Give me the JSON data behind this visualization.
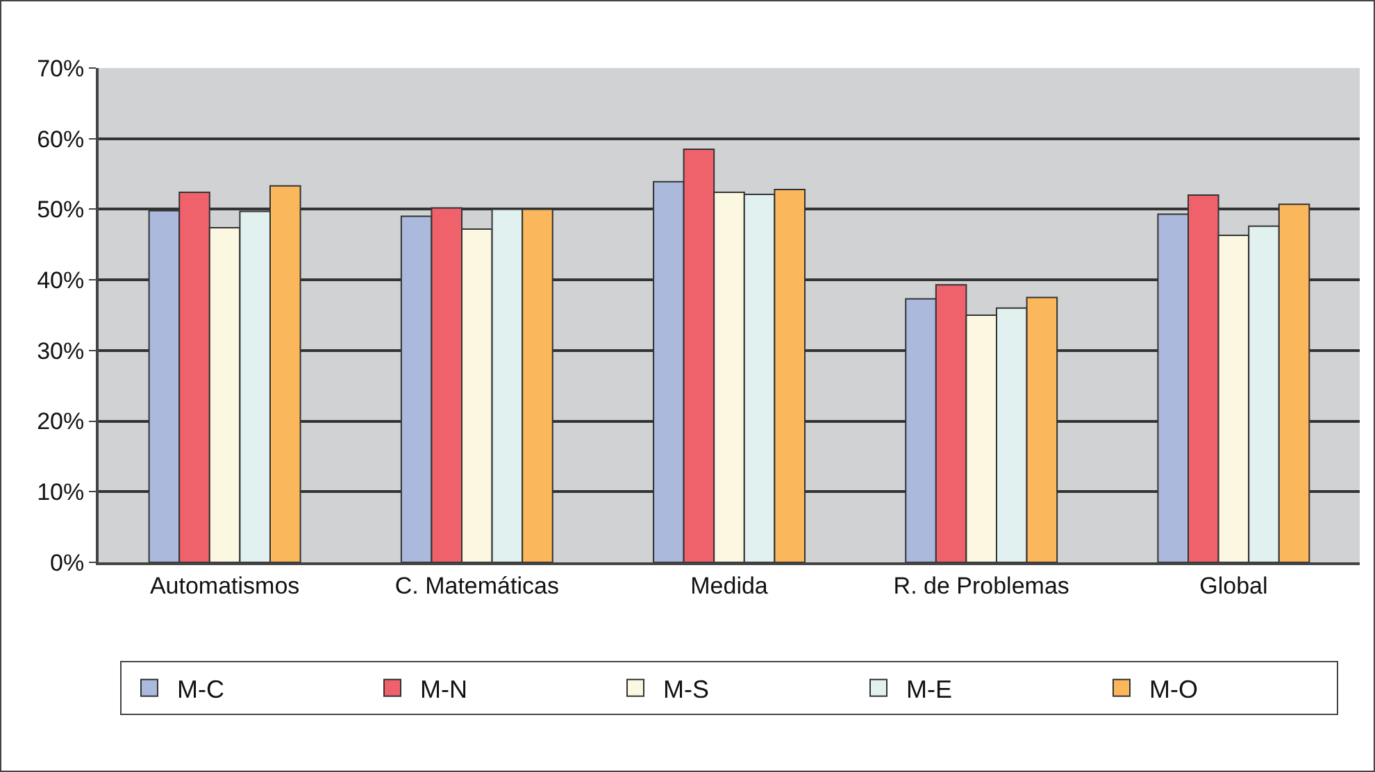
{
  "chart_data": {
    "type": "bar",
    "categories": [
      "Automatismos",
      "C. Matemáticas",
      "Medida",
      "R. de Problemas",
      "Global"
    ],
    "series": [
      {
        "name": "M-C",
        "color": "#abb9dd",
        "values": [
          49.8,
          49.0,
          53.9,
          37.3,
          49.3
        ]
      },
      {
        "name": "M-N",
        "color": "#ef626c",
        "values": [
          52.4,
          50.2,
          58.5,
          39.3,
          52.0
        ]
      },
      {
        "name": "M-S",
        "color": "#fcf7e0",
        "values": [
          47.4,
          47.2,
          52.4,
          35.0,
          46.3
        ]
      },
      {
        "name": "M-E",
        "color": "#e0f1ef",
        "values": [
          49.7,
          50.0,
          52.1,
          36.0,
          47.6
        ]
      },
      {
        "name": "M-O",
        "color": "#fbb75c",
        "values": [
          53.3,
          50.0,
          52.8,
          37.5,
          50.7
        ]
      }
    ],
    "ylim": [
      0,
      70
    ],
    "yticks": [
      {
        "value": 0,
        "label": "0%"
      },
      {
        "value": 10,
        "label": "10%"
      },
      {
        "value": 20,
        "label": "20%"
      },
      {
        "value": 30,
        "label": "30%"
      },
      {
        "value": 40,
        "label": "40%"
      },
      {
        "value": 50,
        "label": "50%"
      },
      {
        "value": 60,
        "label": "60%"
      },
      {
        "value": 70,
        "label": "70%"
      }
    ],
    "grid": "y",
    "legend": "bottom"
  }
}
